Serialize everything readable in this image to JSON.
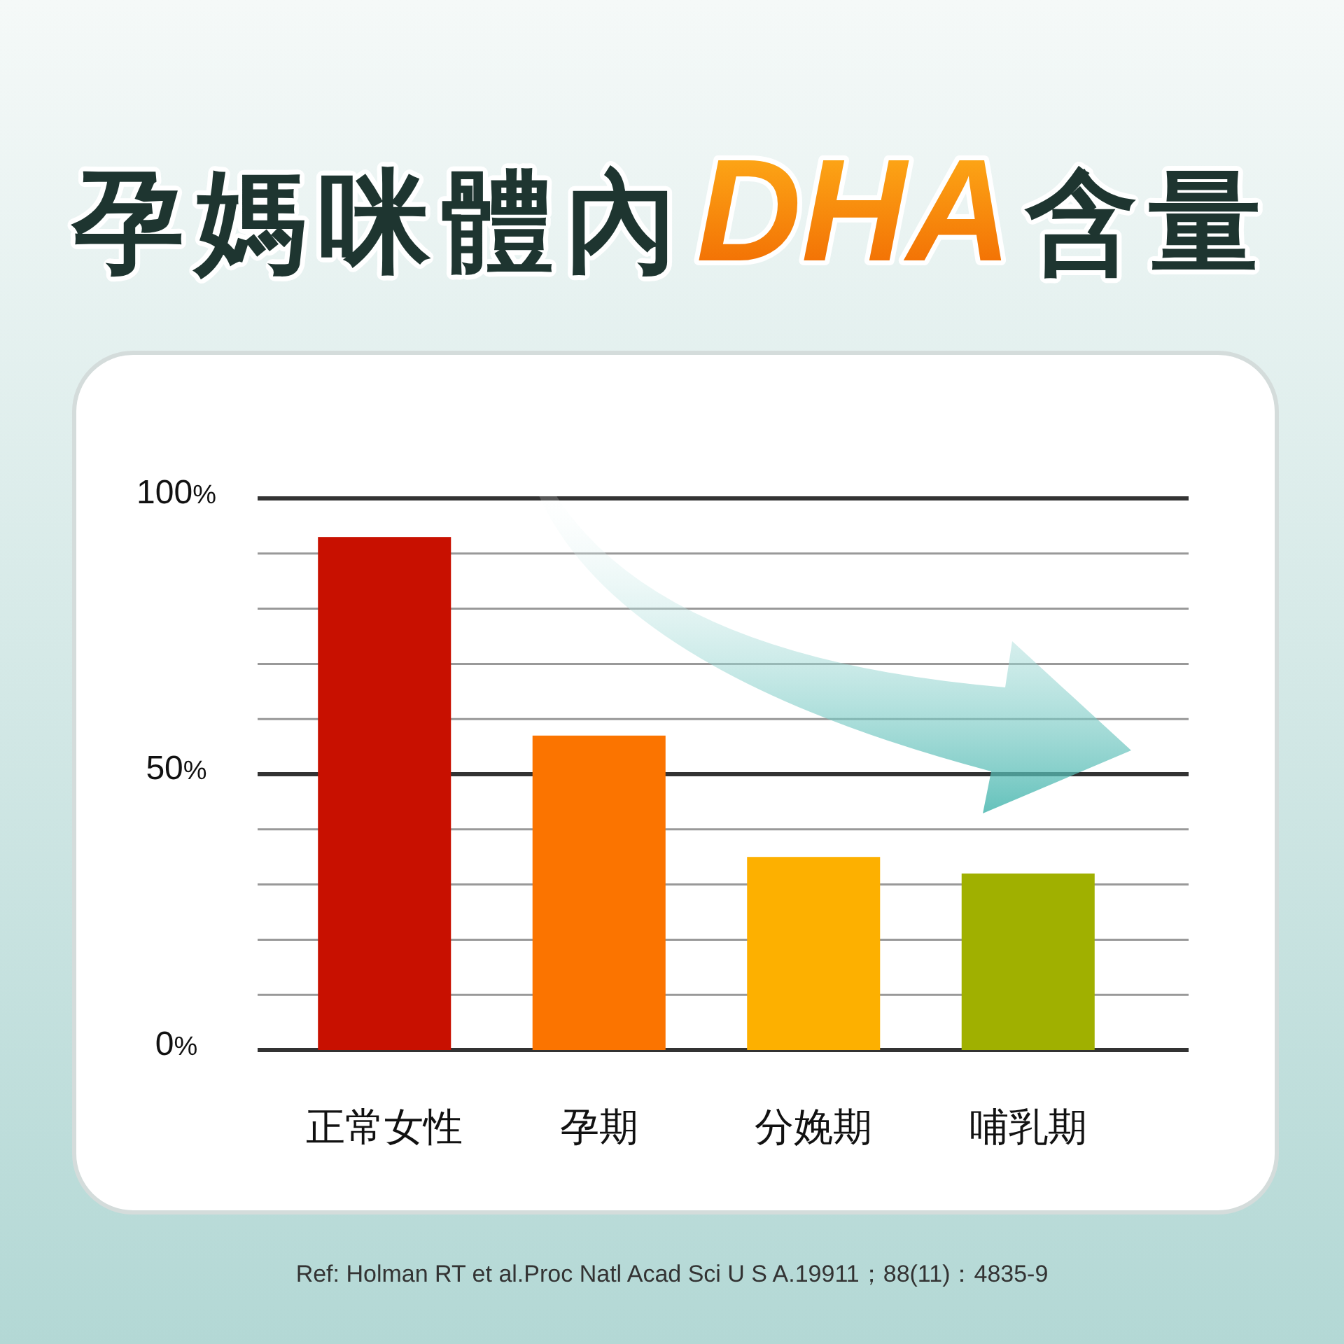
{
  "chart_data": {
    "type": "bar",
    "title": "孕媽咪體內DHA含量",
    "categories": [
      "正常女性",
      "孕期",
      "分娩期",
      "哺乳期"
    ],
    "values": [
      93,
      57,
      35,
      32
    ],
    "colors": [
      "#c81000",
      "#fb7400",
      "#fdb000",
      "#a0b000"
    ],
    "ylim": [
      0,
      100
    ],
    "yticks": [
      {
        "value": 0,
        "label": "0%"
      },
      {
        "value": 10,
        "label": null
      },
      {
        "value": 20,
        "label": null
      },
      {
        "value": 30,
        "label": null
      },
      {
        "value": 40,
        "label": null
      },
      {
        "value": 50,
        "label": "50%"
      },
      {
        "value": 60,
        "label": null
      },
      {
        "value": 70,
        "label": null
      },
      {
        "value": 80,
        "label": null
      },
      {
        "value": 90,
        "label": null
      },
      {
        "value": 100,
        "label": "100%"
      }
    ],
    "grid": true,
    "ref_lines": [
      {
        "axis": "y",
        "value": 50,
        "color": "#333333"
      }
    ],
    "annotations": [
      "Ref: Holman RT et al.Proc Natl Acad Sci U S A.19911；88(11)：4835-9"
    ]
  }
}
